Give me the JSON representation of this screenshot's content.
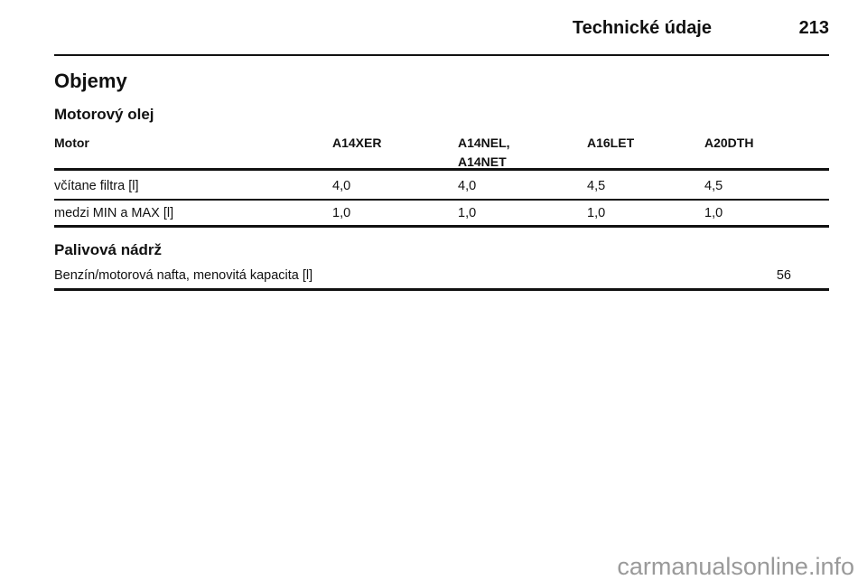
{
  "header": {
    "title": "Technické údaje",
    "page": "213"
  },
  "section": {
    "title": "Objemy"
  },
  "oil": {
    "title": "Motorový olej",
    "table": {
      "headers": [
        "Motor",
        "A14XER",
        "A14NEL, A14NET",
        "A16LET",
        "A20DTH"
      ],
      "rows": [
        [
          "včítane filtra [l]",
          "4,0",
          "4,0",
          "4,5",
          "4,5"
        ],
        [
          "medzi MIN a MAX [l]",
          "1,0",
          "1,0",
          "1,0",
          "1,0"
        ]
      ]
    }
  },
  "fuel": {
    "title": "Palivová nádrž",
    "table": {
      "rows": [
        [
          "Benzín/motorová nafta, menovitá kapacita [l]",
          "56"
        ]
      ]
    }
  },
  "watermark": "carmanualsonline.info"
}
